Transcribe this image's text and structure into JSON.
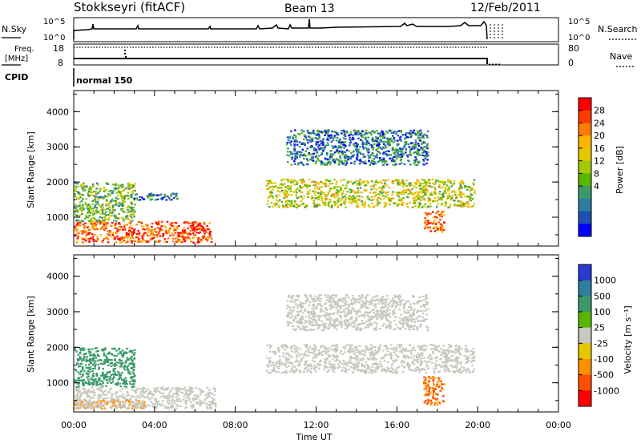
{
  "header": {
    "station": "Stokkseyri (fitACF)",
    "beam": "Beam 13",
    "date": "12/Feb/2011"
  },
  "panels": {
    "nsky": {
      "label": "N.Sky",
      "left_ticks": [
        "10^5",
        "10^0"
      ],
      "right_ticks": [
        "10^5",
        "10^0"
      ],
      "right_label": "N.Search"
    },
    "freq": {
      "label_line1": "Freq.",
      "label_line2": "[MHz]",
      "left_ticks": [
        "18",
        "8"
      ],
      "right_ticks": [
        "80",
        "0"
      ],
      "right_label": "Nave"
    },
    "cpid": {
      "label": "CPID",
      "value": "normal 150"
    }
  },
  "power_colorbar": {
    "label": "Power [dB]",
    "ticks": [
      "28",
      "24",
      "20",
      "16",
      "12",
      "8",
      "4"
    ],
    "colors": [
      "#ff0000",
      "#ff3a00",
      "#ff7a00",
      "#ffb400",
      "#e6c800",
      "#a6c800",
      "#58b800",
      "#3a9a6a",
      "#2e7ea0",
      "#1e50b4",
      "#0000ff"
    ]
  },
  "velocity_colorbar": {
    "label": "Velocity [m s⁻¹]",
    "ticks": [
      "1000",
      "500",
      "100",
      "25",
      "-25",
      "-100",
      "-500",
      "-1000"
    ],
    "colors": [
      "#2a3ad0",
      "#2e7ea0",
      "#3a9a6a",
      "#58b800",
      "#c8c8c0",
      "#e6c800",
      "#ff9000",
      "#ff5000",
      "#ff0000"
    ]
  },
  "x_axis": {
    "label": "Time UT",
    "ticks": [
      "00:00",
      "04:00",
      "08:00",
      "12:00",
      "16:00",
      "20:00",
      "00:00"
    ]
  },
  "y_axis": {
    "label": "Slant Range [km]",
    "ticks": [
      "4000",
      "3000",
      "2000",
      "1000"
    ]
  },
  "chart_data": [
    {
      "type": "heatmap",
      "title": "",
      "xlabel": "Time UT",
      "ylabel": "Slant Range [km]",
      "colorbar_label": "Power [dB]",
      "x_range_hours": [
        0,
        24
      ],
      "y_range_km": [
        180,
        4600
      ],
      "regions": [
        {
          "t0": 0.0,
          "t1": 6.8,
          "r0": 300,
          "r1": 900,
          "value_db": 26
        },
        {
          "t0": 0.0,
          "t1": 3.0,
          "r0": 900,
          "r1": 2000,
          "value_db": 12
        },
        {
          "t0": 2.8,
          "t1": 5.2,
          "r0": 1500,
          "r1": 1700,
          "value_db": 6
        },
        {
          "t0": 9.5,
          "t1": 19.8,
          "r0": 1300,
          "r1": 2100,
          "value_db": 16
        },
        {
          "t0": 17.3,
          "t1": 18.3,
          "r0": 600,
          "r1": 1200,
          "value_db": 24
        },
        {
          "t0": 10.5,
          "t1": 17.5,
          "r0": 2500,
          "r1": 3500,
          "value_db": 6
        }
      ]
    },
    {
      "type": "heatmap",
      "title": "",
      "xlabel": "Time UT",
      "ylabel": "Slant Range [km]",
      "colorbar_label": "Velocity [m s⁻¹]",
      "x_range_hours": [
        0,
        24
      ],
      "y_range_km": [
        180,
        4600
      ],
      "regions": [
        {
          "t0": 0.0,
          "t1": 3.0,
          "r0": 900,
          "r1": 2000,
          "value_ms": 150
        },
        {
          "t0": 0.0,
          "t1": 3.5,
          "r0": 300,
          "r1": 550,
          "value_ms": -150
        },
        {
          "t0": 0.0,
          "t1": 7.0,
          "r0": 300,
          "r1": 900,
          "value_ms": 0
        },
        {
          "t0": 9.5,
          "t1": 19.8,
          "r0": 1300,
          "r1": 2100,
          "value_ms": 0
        },
        {
          "t0": 17.3,
          "t1": 18.3,
          "r0": 400,
          "r1": 1200,
          "value_ms": -300
        },
        {
          "t0": 10.5,
          "t1": 17.5,
          "r0": 2500,
          "r1": 3500,
          "value_ms": 0
        }
      ]
    }
  ]
}
